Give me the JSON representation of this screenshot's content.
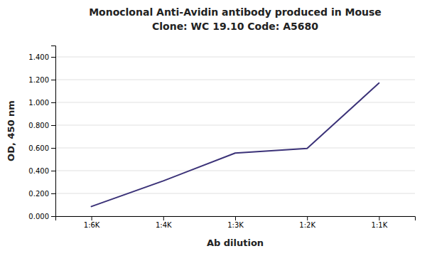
{
  "chart_data": {
    "type": "line",
    "title": "Monoclonal Anti-Avidin antibody produced in Mouse",
    "subtitle": "Clone: WC 19.10  Code: A5680",
    "xlabel": "Ab dilution",
    "ylabel": "OD, 450 nm",
    "categories": [
      "1:6K",
      "1:4K",
      "1:3K",
      "1:2K",
      "1:1K"
    ],
    "values": [
      0.085,
      0.31,
      0.555,
      0.595,
      1.17
    ],
    "color": "#3b3278",
    "ylim": [
      0.0,
      1.5
    ],
    "yticks": [
      {
        "value": 0.0,
        "label": "0.000"
      },
      {
        "value": 0.2,
        "label": "0.200"
      },
      {
        "value": 0.4,
        "label": "0.400"
      },
      {
        "value": 0.6,
        "label": "0.600"
      },
      {
        "value": 0.8,
        "label": "0.800"
      },
      {
        "value": 1.0,
        "label": "1.000"
      },
      {
        "value": 1.2,
        "label": "1.200"
      },
      {
        "value": 1.4,
        "label": "1.400"
      }
    ],
    "grid": true
  }
}
